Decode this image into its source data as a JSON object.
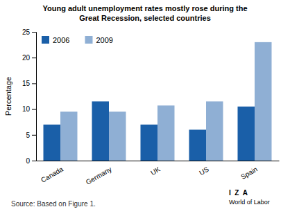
{
  "chart_data": {
    "type": "bar",
    "title": "Young adult unemployment rates mostly rose during the\nGreat Recession, selected countries",
    "categories": [
      "Canada",
      "Germany",
      "UK",
      "US",
      "Spain"
    ],
    "series": [
      {
        "name": "2006",
        "color": "#1a5fa8",
        "values": [
          7.0,
          11.5,
          7.0,
          6.0,
          10.5
        ]
      },
      {
        "name": "2009",
        "color": "#8fafd4",
        "values": [
          9.5,
          9.5,
          10.7,
          11.5,
          23.0
        ]
      }
    ],
    "ylabel": "Percentage",
    "ylim": [
      0,
      25
    ],
    "yticks": [
      0,
      5,
      10,
      15,
      20,
      25
    ],
    "grid": false,
    "legend": "upper left",
    "annotations": [
      "Source: Based on Figure 1.",
      "I  Z  A",
      "World of Labor"
    ]
  }
}
